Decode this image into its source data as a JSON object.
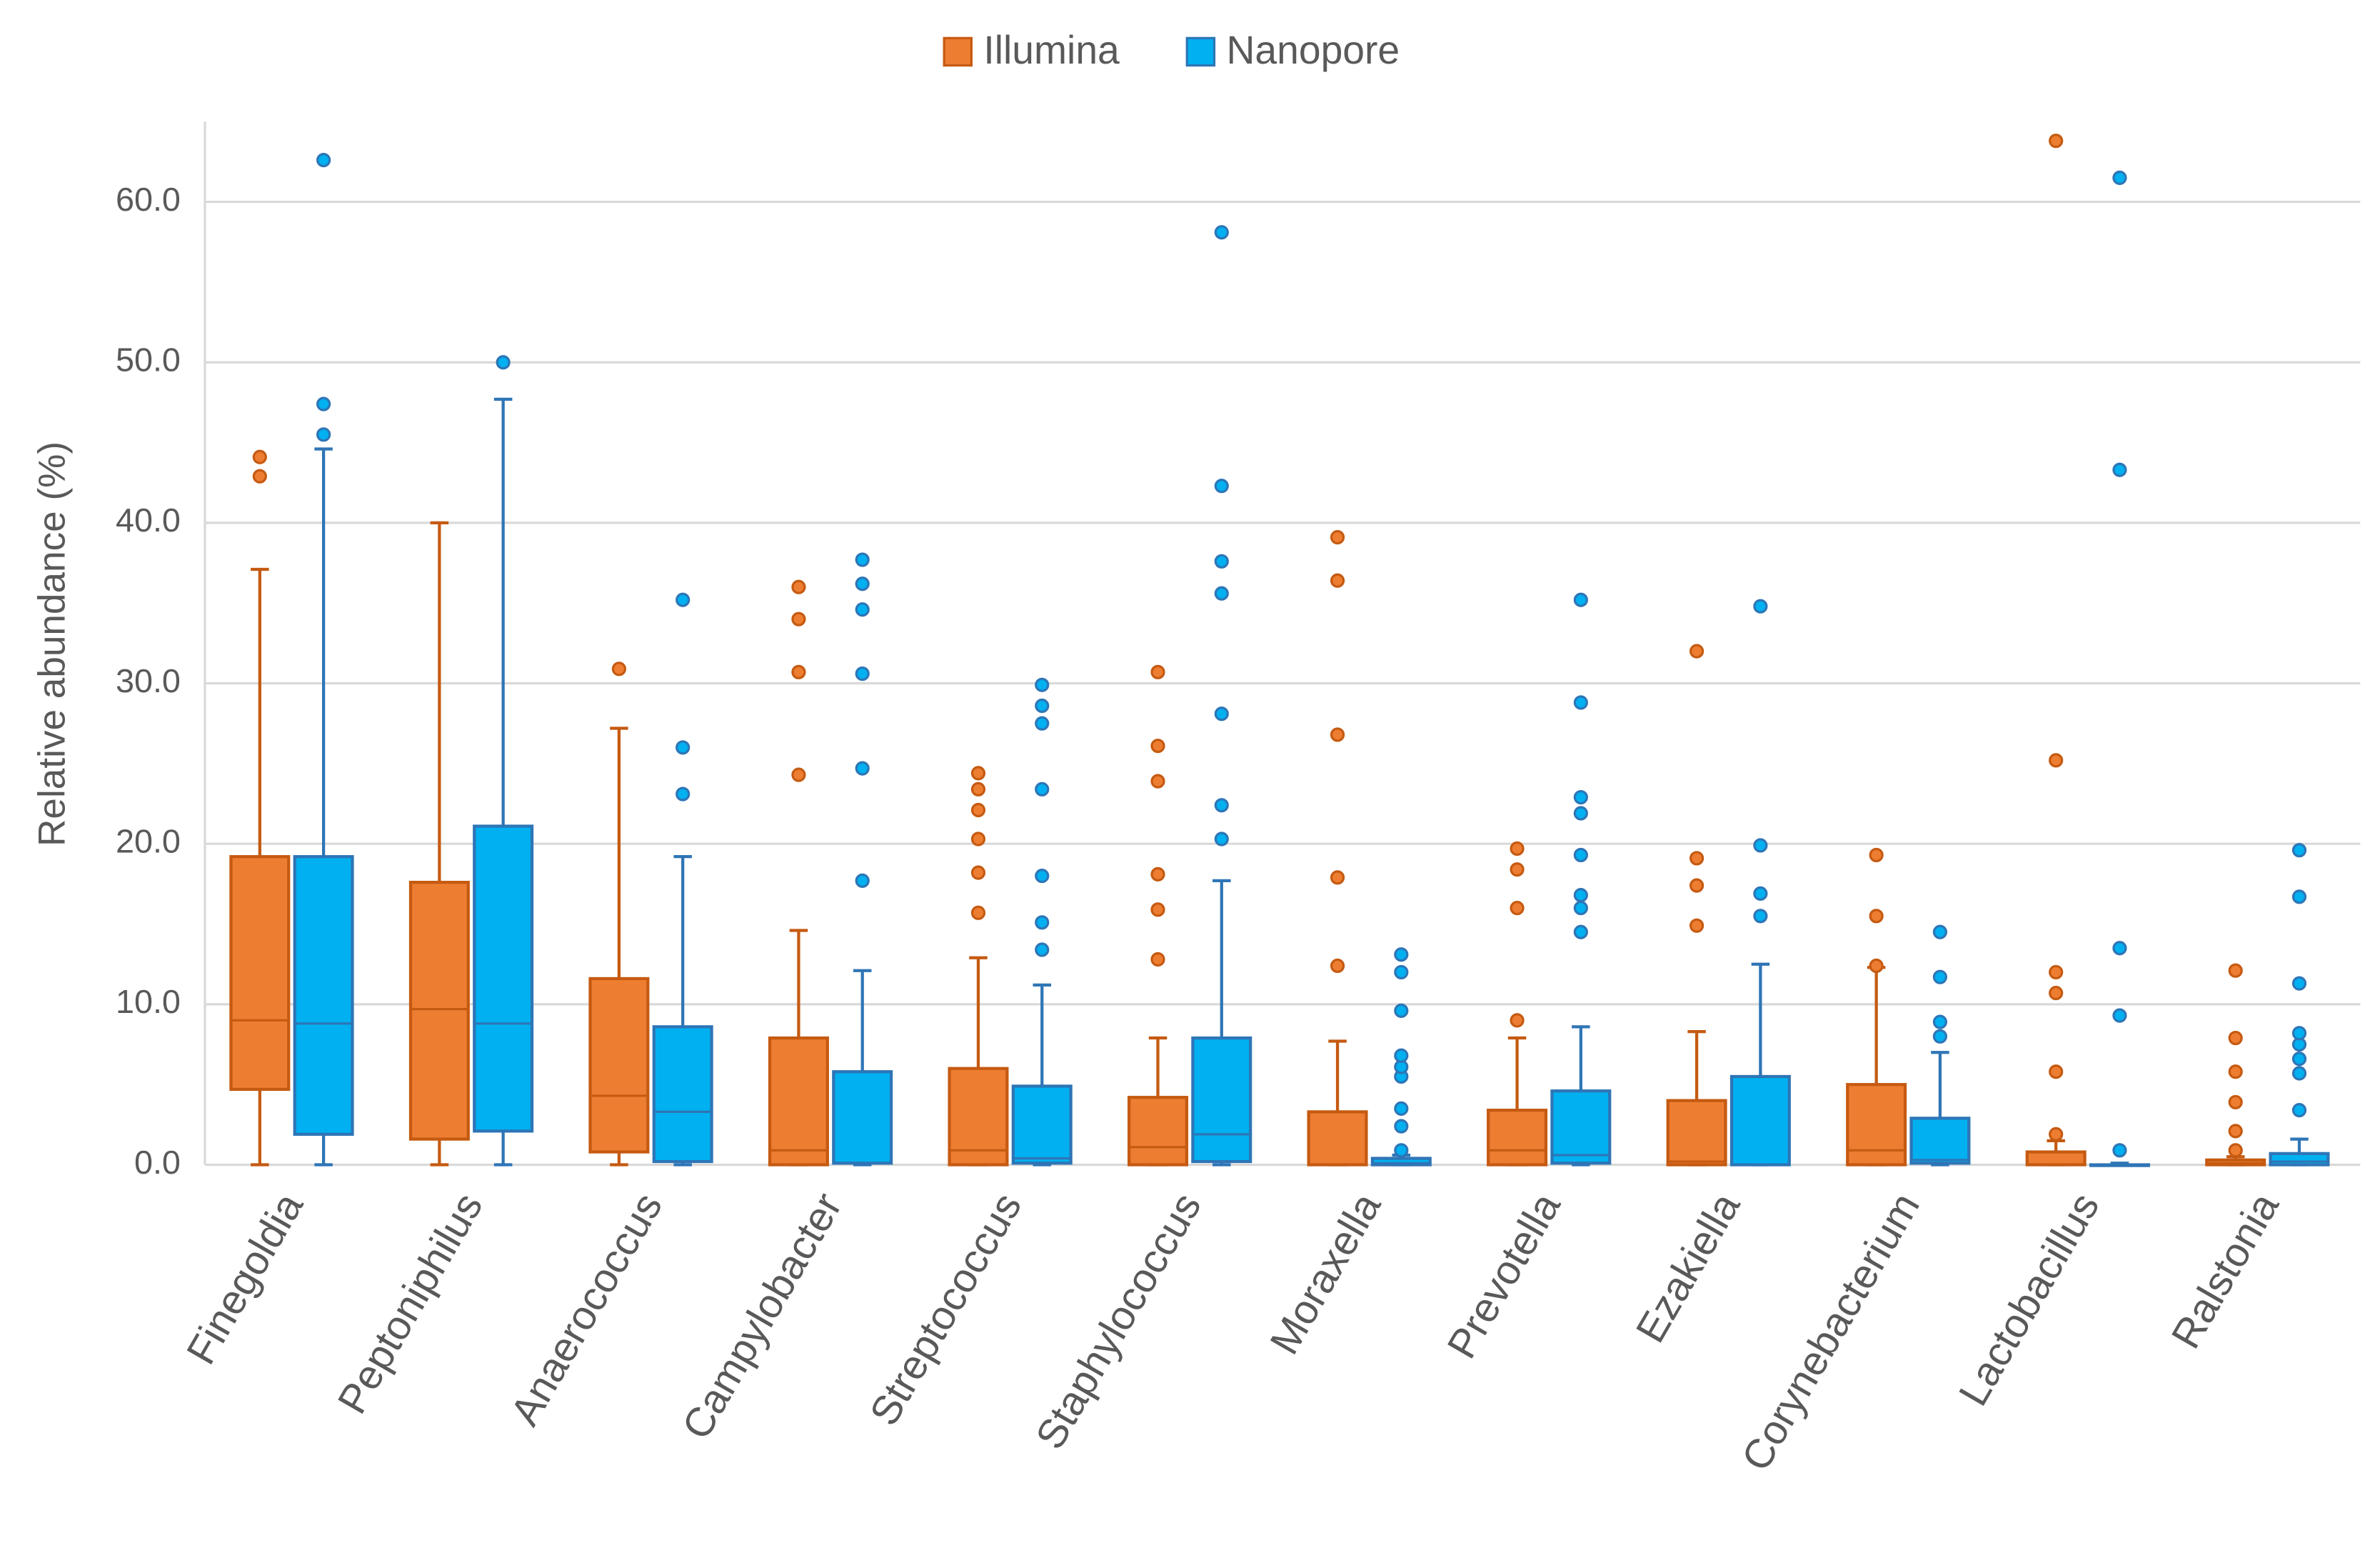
{
  "chart_data": {
    "type": "box",
    "y_label": "Relative abundance (%)",
    "ylim": [
      0,
      65
    ],
    "yticks": [
      {
        "value": 0,
        "label": "0.0"
      },
      {
        "value": 10,
        "label": "10.0"
      },
      {
        "value": 20,
        "label": "20.0"
      },
      {
        "value": 30,
        "label": "30.0"
      },
      {
        "value": 40,
        "label": "40.0"
      },
      {
        "value": 50,
        "label": "50.0"
      },
      {
        "value": 60,
        "label": "60.0"
      }
    ],
    "grid": true,
    "legend": "top",
    "categories": [
      "Finegoldia",
      "Peptoniphilus",
      "Anaerococcus",
      "Campylobacter",
      "Streptococcus",
      "Staphylococcus",
      "Moraxella",
      "Prevotella",
      "Ezakiella",
      "Corynebacterium",
      "Lactobacillus",
      "Ralstonia"
    ],
    "series": [
      {
        "name": "Illumina",
        "color": "#ed7d31",
        "edge": "#c55a11",
        "boxes": [
          {
            "min": 0,
            "q1": 4.7,
            "median": 9.0,
            "q3": 19.2,
            "max": 37.1,
            "outliers": [
              42.9,
              44.1
            ]
          },
          {
            "min": 0,
            "q1": 1.6,
            "median": 9.7,
            "q3": 17.6,
            "max": 40.0,
            "outliers": []
          },
          {
            "min": 0,
            "q1": 0.8,
            "median": 4.3,
            "q3": 11.6,
            "max": 27.2,
            "outliers": [
              30.9
            ]
          },
          {
            "min": 0,
            "q1": 0,
            "median": 0.9,
            "q3": 7.9,
            "max": 14.6,
            "outliers": [
              24.3,
              30.7,
              34.0,
              36.0
            ]
          },
          {
            "min": 0,
            "q1": 0,
            "median": 0.9,
            "q3": 6.0,
            "max": 12.9,
            "outliers": [
              15.7,
              18.2,
              20.3,
              22.1,
              23.4,
              24.4
            ]
          },
          {
            "min": 0,
            "q1": 0,
            "median": 1.1,
            "q3": 4.2,
            "max": 7.9,
            "outliers": [
              12.8,
              15.9,
              18.1,
              23.9,
              26.1,
              30.7
            ]
          },
          {
            "min": 0,
            "q1": 0,
            "median": 0,
            "q3": 3.3,
            "max": 7.7,
            "outliers": [
              12.4,
              17.9,
              26.8,
              36.4,
              39.1
            ]
          },
          {
            "min": 0,
            "q1": 0,
            "median": 0.9,
            "q3": 3.4,
            "max": 7.9,
            "outliers": [
              9.0,
              16.0,
              18.4,
              19.7
            ]
          },
          {
            "min": 0,
            "q1": 0,
            "median": 0.2,
            "q3": 4.0,
            "max": 8.3,
            "outliers": [
              14.9,
              17.4,
              19.1,
              32.0
            ]
          },
          {
            "min": 0,
            "q1": 0,
            "median": 0.9,
            "q3": 5.0,
            "max": 12.3,
            "outliers": [
              12.4,
              15.5,
              19.3
            ]
          },
          {
            "min": 0,
            "q1": 0,
            "median": 0,
            "q3": 0.8,
            "max": 1.5,
            "outliers": [
              1.9,
              5.8,
              10.7,
              12.0,
              25.2,
              63.8
            ]
          },
          {
            "min": 0,
            "q1": 0,
            "median": 0.1,
            "q3": 0.3,
            "max": 0.5,
            "outliers": [
              0.9,
              2.1,
              3.9,
              5.8,
              7.9,
              12.1
            ]
          }
        ]
      },
      {
        "name": "Nanopore",
        "color": "#00b0f0",
        "edge": "#2e75b6",
        "boxes": [
          {
            "min": 0,
            "q1": 1.9,
            "median": 8.8,
            "q3": 19.2,
            "max": 44.6,
            "outliers": [
              45.5,
              47.4,
              62.6
            ]
          },
          {
            "min": 0,
            "q1": 2.1,
            "median": 8.8,
            "q3": 21.1,
            "max": 47.7,
            "outliers": [
              50.0
            ]
          },
          {
            "min": 0,
            "q1": 0.2,
            "median": 3.3,
            "q3": 8.6,
            "max": 19.2,
            "outliers": [
              23.1,
              26.0,
              35.2
            ]
          },
          {
            "min": 0,
            "q1": 0.1,
            "median": 0.1,
            "q3": 5.8,
            "max": 12.1,
            "outliers": [
              17.7,
              24.7,
              30.6,
              34.6,
              36.2,
              37.7
            ]
          },
          {
            "min": 0,
            "q1": 0.1,
            "median": 0.4,
            "q3": 4.9,
            "max": 11.2,
            "outliers": [
              13.4,
              15.1,
              18.0,
              23.4,
              27.5,
              28.6,
              29.9
            ]
          },
          {
            "min": 0,
            "q1": 0.2,
            "median": 1.9,
            "q3": 7.9,
            "max": 17.7,
            "outliers": [
              20.3,
              22.4,
              28.1,
              35.6,
              37.6,
              42.3,
              58.1
            ]
          },
          {
            "min": 0,
            "q1": 0,
            "median": 0.1,
            "q3": 0.4,
            "max": 0.6,
            "outliers": [
              0.9,
              2.4,
              3.5,
              5.5,
              6.1,
              6.8,
              9.6,
              12.0,
              13.1
            ]
          },
          {
            "min": 0,
            "q1": 0.1,
            "median": 0.6,
            "q3": 4.6,
            "max": 8.6,
            "outliers": [
              14.5,
              16.0,
              16.8,
              19.3,
              21.9,
              22.9,
              28.8,
              35.2
            ]
          },
          {
            "min": 0,
            "q1": 0,
            "median": 0,
            "q3": 5.5,
            "max": 12.5,
            "outliers": [
              15.5,
              16.9,
              19.9,
              34.8
            ]
          },
          {
            "min": 0,
            "q1": 0.1,
            "median": 0.3,
            "q3": 2.9,
            "max": 7.0,
            "outliers": [
              8.0,
              8.9,
              11.7,
              14.5
            ]
          },
          {
            "min": 0,
            "q1": 0,
            "median": 0,
            "q3": 0,
            "max": 0.1,
            "outliers": [
              0.9,
              9.3,
              13.5,
              43.3,
              61.5
            ]
          },
          {
            "min": 0,
            "q1": 0,
            "median": 0.2,
            "q3": 0.7,
            "max": 1.6,
            "outliers": [
              3.4,
              5.7,
              6.6,
              7.5,
              8.2,
              11.3,
              16.7,
              19.6
            ]
          }
        ]
      }
    ]
  }
}
